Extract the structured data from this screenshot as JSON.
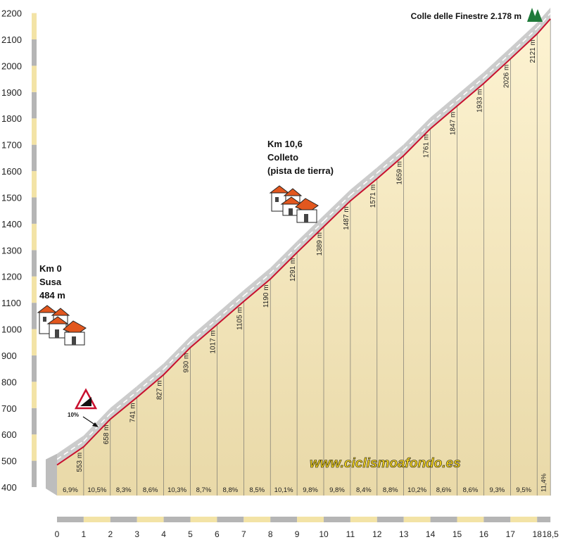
{
  "chart_data": {
    "type": "area",
    "title": "",
    "xlabel": "",
    "ylabel": "",
    "ylim": [
      400,
      2200
    ],
    "xlim": [
      0,
      18.5
    ],
    "y_ticks": [
      400,
      500,
      600,
      700,
      800,
      900,
      1000,
      1100,
      1200,
      1300,
      1400,
      1500,
      1600,
      1700,
      1800,
      1900,
      2000,
      2100,
      2200
    ],
    "x_ticks": [
      "0",
      "1",
      "2",
      "3",
      "4",
      "5",
      "6",
      "7",
      "8",
      "9",
      "10",
      "11",
      "12",
      "13",
      "14",
      "15",
      "16",
      "17",
      "18",
      "18,5"
    ],
    "x": [
      0,
      1,
      2,
      3,
      4,
      5,
      6,
      7,
      8,
      9,
      10,
      11,
      12,
      13,
      14,
      15,
      16,
      17,
      18,
      18.5
    ],
    "altitude": [
      484,
      553,
      658,
      741,
      827,
      930,
      1017,
      1105,
      1190,
      1291,
      1389,
      1487,
      1571,
      1659,
      1761,
      1847,
      1933,
      2026,
      2121,
      2178
    ],
    "elevation_labels": [
      "553 m",
      "658 m",
      "741 m",
      "827 m",
      "930 m",
      "1017 m",
      "1105 m",
      "1190 m",
      "1291 m",
      "1389 m",
      "1487 m",
      "1571 m",
      "1659 m",
      "1761 m",
      "1847 m",
      "1933 m",
      "2026 m",
      "2121 m"
    ],
    "gradients": [
      "6,9%",
      "10,5%",
      "8,3%",
      "8,6%",
      "10,3%",
      "8,7%",
      "8,8%",
      "8,5%",
      "10,1%",
      "9,8%",
      "9,8%",
      "8,4%",
      "8,8%",
      "10,2%",
      "8,6%",
      "8,6%",
      "9,3%",
      "9,5%",
      "11,4%"
    ],
    "grid": true,
    "annotations": {
      "start": [
        "Km 0",
        "Susa",
        "484 m"
      ],
      "midpoint": [
        "Km 10,6",
        "Colleto",
        "(pista de tierra)"
      ],
      "summit": "Colle delle Finestre 2.178 m",
      "max_gradient_sign": "10%",
      "website": "www.ciclismoafondo.es"
    },
    "colors": {
      "profile_line": "#c8102e",
      "road_band": "#cccccc",
      "fill_top": "#fdf3d2",
      "fill_bottom": "#e9d9a8",
      "axis_stripe": "#f3e3a6",
      "website_text": "#f2d21a",
      "house_roof": "#e2571e",
      "summit_tree": "#1f7a3a"
    }
  }
}
